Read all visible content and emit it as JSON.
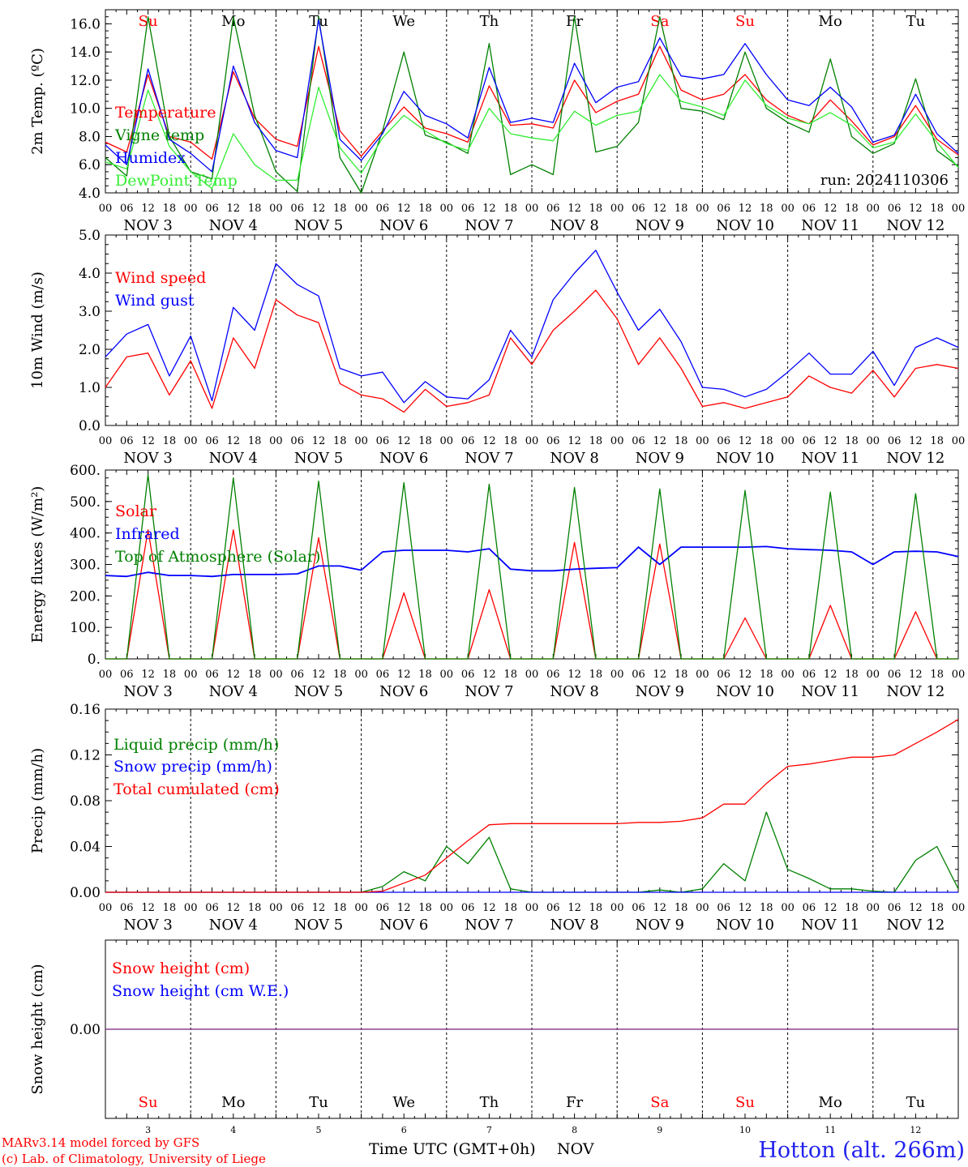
{
  "footer": {
    "credit_line1": "MARv3.14 model forced by GFS",
    "credit_line2": "(c) Lab. of Climatology, University of Liege",
    "time_label": "Time UTC (GMT+0h)",
    "month_label": "NOV",
    "station": "Hotton (alt. 266m)"
  },
  "days": [
    {
      "abbr": "Su",
      "date": "NOV  3",
      "num": "3",
      "weekend": true
    },
    {
      "abbr": "Mo",
      "date": "NOV  4",
      "num": "4",
      "weekend": false
    },
    {
      "abbr": "Tu",
      "date": "NOV  5",
      "num": "5",
      "weekend": false
    },
    {
      "abbr": "We",
      "date": "NOV  6",
      "num": "6",
      "weekend": false
    },
    {
      "abbr": "Th",
      "date": "NOV  7",
      "num": "7",
      "weekend": false
    },
    {
      "abbr": "Fr",
      "date": "NOV  8",
      "num": "8",
      "weekend": false
    },
    {
      "abbr": "Sa",
      "date": "NOV  9",
      "num": "9",
      "weekend": true
    },
    {
      "abbr": "Su",
      "date": "NOV 10",
      "num": "10",
      "weekend": true
    },
    {
      "abbr": "Mo",
      "date": "NOV 11",
      "num": "11",
      "weekend": false
    },
    {
      "abbr": "Tu",
      "date": "NOV 12",
      "num": "12",
      "weekend": false
    }
  ],
  "hour_ticks": [
    "00",
    "06",
    "12",
    "18"
  ],
  "colors": {
    "red": "#ff0000",
    "green": "#008000",
    "blue": "#0000ff",
    "lightgreen": "#33ee33",
    "purple": "#8b3a8b",
    "station": "#2222ee"
  },
  "chart_data": [
    {
      "type": "line",
      "ylabel": "2m Temp. (ºC)",
      "ylim": [
        4,
        17
      ],
      "yticks": [
        4,
        6,
        8,
        10,
        12,
        14,
        16
      ],
      "ytick_labels": [
        "4.0",
        "6.0",
        "8.0",
        "10.0",
        "12.0",
        "14.0",
        "16.0"
      ],
      "x": [
        0,
        6,
        12,
        18,
        24,
        30,
        36,
        42,
        48,
        54,
        60,
        66,
        72,
        78,
        84,
        90,
        96,
        102,
        108,
        114,
        120,
        126,
        132,
        138,
        144,
        150,
        156,
        162,
        168,
        174,
        180,
        186,
        192,
        198,
        204,
        210,
        216,
        222,
        228,
        234,
        240
      ],
      "annotation": "run: 2024110306",
      "series": [
        {
          "name": "Temperature",
          "color": "#ff0000",
          "values": [
            7.6,
            6.9,
            12.4,
            8.0,
            7.6,
            6.4,
            12.6,
            9.3,
            7.8,
            7.3,
            14.4,
            8.4,
            6.6,
            8.4,
            10.1,
            8.6,
            8.2,
            7.6,
            11.6,
            8.8,
            8.9,
            8.6,
            12.0,
            9.7,
            10.5,
            11.0,
            14.4,
            11.3,
            10.6,
            11.0,
            12.4,
            10.6,
            9.5,
            8.9,
            10.6,
            9.1,
            7.4,
            8.0,
            10.2,
            7.8,
            6.7
          ]
        },
        {
          "name": "Vigne temp",
          "color": "#008000",
          "values": [
            6.5,
            5.2,
            16.5,
            8.0,
            5.5,
            5.0,
            16.5,
            9.5,
            5.5,
            4.1,
            16.5,
            6.5,
            3.5,
            8.4,
            14.0,
            8.1,
            7.6,
            6.8,
            14.6,
            5.3,
            6.0,
            5.3,
            16.5,
            6.9,
            7.3,
            9.0,
            16.5,
            10.0,
            9.8,
            9.2,
            14.0,
            10.0,
            9.0,
            8.3,
            13.5,
            8.0,
            6.8,
            7.5,
            12.1,
            7.0,
            5.9
          ]
        },
        {
          "name": "Humidex",
          "color": "#0000ff",
          "values": [
            7.4,
            6.0,
            12.8,
            7.8,
            6.8,
            5.5,
            13.0,
            9.0,
            7.0,
            6.5,
            16.3,
            7.8,
            6.3,
            8.2,
            11.2,
            9.5,
            8.9,
            7.9,
            12.9,
            9.0,
            9.3,
            9.0,
            13.2,
            10.4,
            11.5,
            11.9,
            15.0,
            12.3,
            12.1,
            12.4,
            14.6,
            12.4,
            10.6,
            10.2,
            11.5,
            10.1,
            7.6,
            8.1,
            11.0,
            8.2,
            6.8
          ]
        },
        {
          "name": "DewPoint Temp",
          "color": "#33ee33",
          "values": [
            6.2,
            5.7,
            11.3,
            7.3,
            5.5,
            4.3,
            8.2,
            6.0,
            4.9,
            4.9,
            11.5,
            7.2,
            5.4,
            7.9,
            9.5,
            8.4,
            7.5,
            7.0,
            10.0,
            8.2,
            7.9,
            7.7,
            9.8,
            8.8,
            9.5,
            9.8,
            12.4,
            10.5,
            10.1,
            9.5,
            12.0,
            10.2,
            9.3,
            8.9,
            9.7,
            8.8,
            7.2,
            7.6,
            9.6,
            7.6,
            5.8
          ]
        }
      ]
    },
    {
      "type": "line",
      "ylabel": "10m Wind (m/s)",
      "ylim": [
        0,
        5
      ],
      "yticks": [
        0,
        1,
        2,
        3,
        4,
        5
      ],
      "ytick_labels": [
        "0.0",
        "1.0",
        "2.0",
        "3.0",
        "4.0",
        "5.0"
      ],
      "x": [
        0,
        6,
        12,
        18,
        24,
        30,
        36,
        42,
        48,
        54,
        60,
        66,
        72,
        78,
        84,
        90,
        96,
        102,
        108,
        114,
        120,
        126,
        132,
        138,
        144,
        150,
        156,
        162,
        168,
        174,
        180,
        186,
        192,
        198,
        204,
        210,
        216,
        222,
        228,
        234,
        240
      ],
      "series": [
        {
          "name": "Wind speed",
          "color": "#ff0000",
          "values": [
            1.0,
            1.8,
            1.9,
            0.8,
            1.7,
            0.45,
            2.3,
            1.5,
            3.3,
            2.9,
            2.7,
            1.1,
            0.8,
            0.7,
            0.35,
            0.95,
            0.5,
            0.6,
            0.8,
            2.3,
            1.6,
            2.5,
            3.0,
            3.55,
            2.8,
            1.6,
            2.3,
            1.5,
            0.5,
            0.6,
            0.45,
            0.6,
            0.75,
            1.3,
            1.0,
            0.85,
            1.45,
            0.75,
            1.5,
            1.6,
            1.5
          ]
        },
        {
          "name": "Wind gust",
          "color": "#0000ff",
          "values": [
            1.8,
            2.4,
            2.65,
            1.3,
            2.35,
            0.65,
            3.1,
            2.5,
            4.25,
            3.7,
            3.4,
            1.5,
            1.3,
            1.4,
            0.6,
            1.15,
            0.75,
            0.7,
            1.2,
            2.5,
            1.8,
            3.3,
            4.0,
            4.6,
            3.5,
            2.5,
            3.05,
            2.2,
            1.0,
            0.95,
            0.75,
            0.95,
            1.4,
            1.9,
            1.35,
            1.35,
            1.95,
            1.05,
            2.05,
            2.3,
            2.05
          ]
        }
      ]
    },
    {
      "type": "line",
      "ylabel": "Energy fluxes (W/m²)",
      "ylim": [
        0,
        600
      ],
      "yticks": [
        0,
        100,
        200,
        300,
        400,
        500,
        600
      ],
      "ytick_labels": [
        "0.",
        "100.",
        "200.",
        "300.",
        "400.",
        "500.",
        "600."
      ],
      "x": [
        0,
        6,
        12,
        18,
        24,
        30,
        36,
        42,
        48,
        54,
        60,
        66,
        72,
        78,
        84,
        90,
        96,
        102,
        108,
        114,
        120,
        126,
        132,
        138,
        144,
        150,
        156,
        162,
        168,
        174,
        180,
        186,
        192,
        198,
        204,
        210,
        216,
        222,
        228,
        234,
        240
      ],
      "series": [
        {
          "name": "Solar",
          "color": "#ff0000",
          "values": [
            0,
            0,
            410,
            0,
            0,
            0,
            410,
            0,
            0,
            0,
            385,
            0,
            0,
            0,
            210,
            0,
            0,
            0,
            220,
            0,
            0,
            0,
            370,
            0,
            0,
            0,
            365,
            0,
            0,
            0,
            130,
            0,
            0,
            0,
            170,
            0,
            0,
            0,
            150,
            0,
            0
          ]
        },
        {
          "name": "Infrared",
          "color": "#0000ff",
          "values": [
            265,
            262,
            275,
            265,
            265,
            262,
            268,
            268,
            268,
            270,
            295,
            295,
            282,
            340,
            345,
            345,
            345,
            340,
            350,
            285,
            280,
            280,
            285,
            288,
            290,
            355,
            300,
            355,
            355,
            355,
            355,
            357,
            350,
            347,
            345,
            340,
            300,
            340,
            342,
            340,
            325
          ]
        },
        {
          "name": "Top of Atmosphere (Solar)",
          "color": "#008000",
          "values": [
            0,
            0,
            585,
            0,
            0,
            0,
            575,
            0,
            0,
            0,
            565,
            0,
            0,
            0,
            560,
            0,
            0,
            0,
            555,
            0,
            0,
            0,
            545,
            0,
            0,
            0,
            540,
            0,
            0,
            0,
            535,
            0,
            0,
            0,
            530,
            0,
            0,
            0,
            525,
            0,
            0
          ]
        }
      ]
    },
    {
      "type": "line",
      "ylabel": "Precip (mm/h)",
      "ylim": [
        0,
        0.16
      ],
      "yticks": [
        0,
        0.04,
        0.08,
        0.12,
        0.16
      ],
      "ytick_labels": [
        "0.00",
        "0.04",
        "0.08",
        "0.12",
        "0.16"
      ],
      "x": [
        0,
        6,
        12,
        18,
        24,
        30,
        36,
        42,
        48,
        54,
        60,
        66,
        72,
        78,
        84,
        90,
        96,
        102,
        108,
        114,
        120,
        126,
        132,
        138,
        144,
        150,
        156,
        162,
        168,
        174,
        180,
        186,
        192,
        198,
        204,
        210,
        216,
        222,
        228,
        234,
        240
      ],
      "series": [
        {
          "name": "Liquid precip (mm/h)",
          "color": "#008000",
          "values": [
            0,
            0,
            0,
            0,
            0,
            0,
            0,
            0,
            0,
            0,
            0,
            0,
            0,
            0.005,
            0.018,
            0.01,
            0.04,
            0.025,
            0.048,
            0.003,
            0,
            0,
            0,
            0,
            0,
            0,
            0.002,
            0,
            0.003,
            0.025,
            0.01,
            0.07,
            0.02,
            0.012,
            0.003,
            0.003,
            0.001,
            0,
            0.028,
            0.04,
            0.003
          ]
        },
        {
          "name": "Snow precip (mm/h)",
          "color": "#0000ff",
          "values": [
            0,
            0,
            0,
            0,
            0,
            0,
            0,
            0,
            0,
            0,
            0,
            0,
            0,
            0,
            0,
            0,
            0,
            0,
            0,
            0,
            0,
            0,
            0,
            0,
            0,
            0,
            0,
            0,
            0,
            0,
            0,
            0,
            0,
            0,
            0,
            0,
            0,
            0,
            0,
            0,
            0
          ]
        },
        {
          "name": "Total cumulated (cm)",
          "color": "#ff0000",
          "values": [
            0,
            0,
            0,
            0,
            0,
            0,
            0,
            0,
            0,
            0,
            0,
            0,
            0,
            0.001,
            0.008,
            0.015,
            0.03,
            0.045,
            0.059,
            0.06,
            0.06,
            0.06,
            0.06,
            0.06,
            0.06,
            0.061,
            0.061,
            0.062,
            0.065,
            0.077,
            0.077,
            0.095,
            0.11,
            0.112,
            0.115,
            0.118,
            0.118,
            0.12,
            0.13,
            0.14,
            0.151
          ]
        }
      ]
    },
    {
      "type": "line",
      "ylabel": "Snow height (cm)",
      "ylim": [
        -1,
        1
      ],
      "yticks": [
        0
      ],
      "ytick_labels": [
        "0.00"
      ],
      "x": [
        0,
        240
      ],
      "series": [
        {
          "name": "Snow height (cm)",
          "color": "#ff0000",
          "values": [
            0,
            0
          ]
        },
        {
          "name": "Snow height (cm W.E.)",
          "color": "#0000ff",
          "values": [
            0,
            0
          ]
        }
      ]
    }
  ]
}
